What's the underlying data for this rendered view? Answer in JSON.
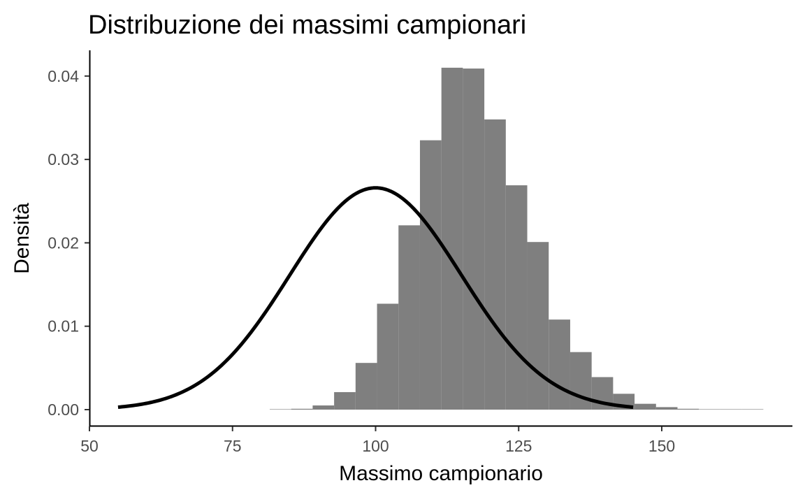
{
  "chart_data": {
    "type": "bar",
    "title": "Distribuzione dei massimi campionari",
    "xlabel": "Massimo campionario",
    "ylabel": "Densità",
    "xlim": [
      50,
      175
    ],
    "ylim": [
      0,
      0.043
    ],
    "x_ticks": [
      50,
      75,
      100,
      125,
      150
    ],
    "x_tick_labels": [
      "50",
      "75",
      "100",
      "125",
      "150"
    ],
    "y_ticks": [
      0.0,
      0.01,
      0.02,
      0.03,
      0.04
    ],
    "y_tick_labels": [
      "0.00",
      "0.01",
      "0.02",
      "0.03",
      "0.04"
    ],
    "grid": false,
    "histogram": {
      "color": "#7f7f7f",
      "bin_width": 3.75,
      "bin_starts": [
        81.5,
        85.25,
        89.0,
        92.75,
        96.5,
        100.25,
        104.0,
        107.75,
        111.5,
        115.25,
        119.0,
        122.75,
        126.5,
        130.25,
        134.0,
        137.75,
        141.5,
        145.25,
        149.0,
        152.75,
        156.5,
        160.25,
        164.0
      ],
      "densities": [
        5e-05,
        0.0001,
        0.0005,
        0.0021,
        0.0056,
        0.0127,
        0.0221,
        0.0323,
        0.041,
        0.0409,
        0.0348,
        0.0269,
        0.0201,
        0.0108,
        0.0069,
        0.0039,
        0.0019,
        0.0007,
        0.0003,
        0.0001,
        5e-05,
        0.0,
        2e-05
      ]
    },
    "series": [
      {
        "type": "line",
        "kind": "normal-density",
        "mean": 100,
        "sd": 15,
        "x_range": [
          55,
          145
        ],
        "color": "#000000"
      }
    ]
  }
}
